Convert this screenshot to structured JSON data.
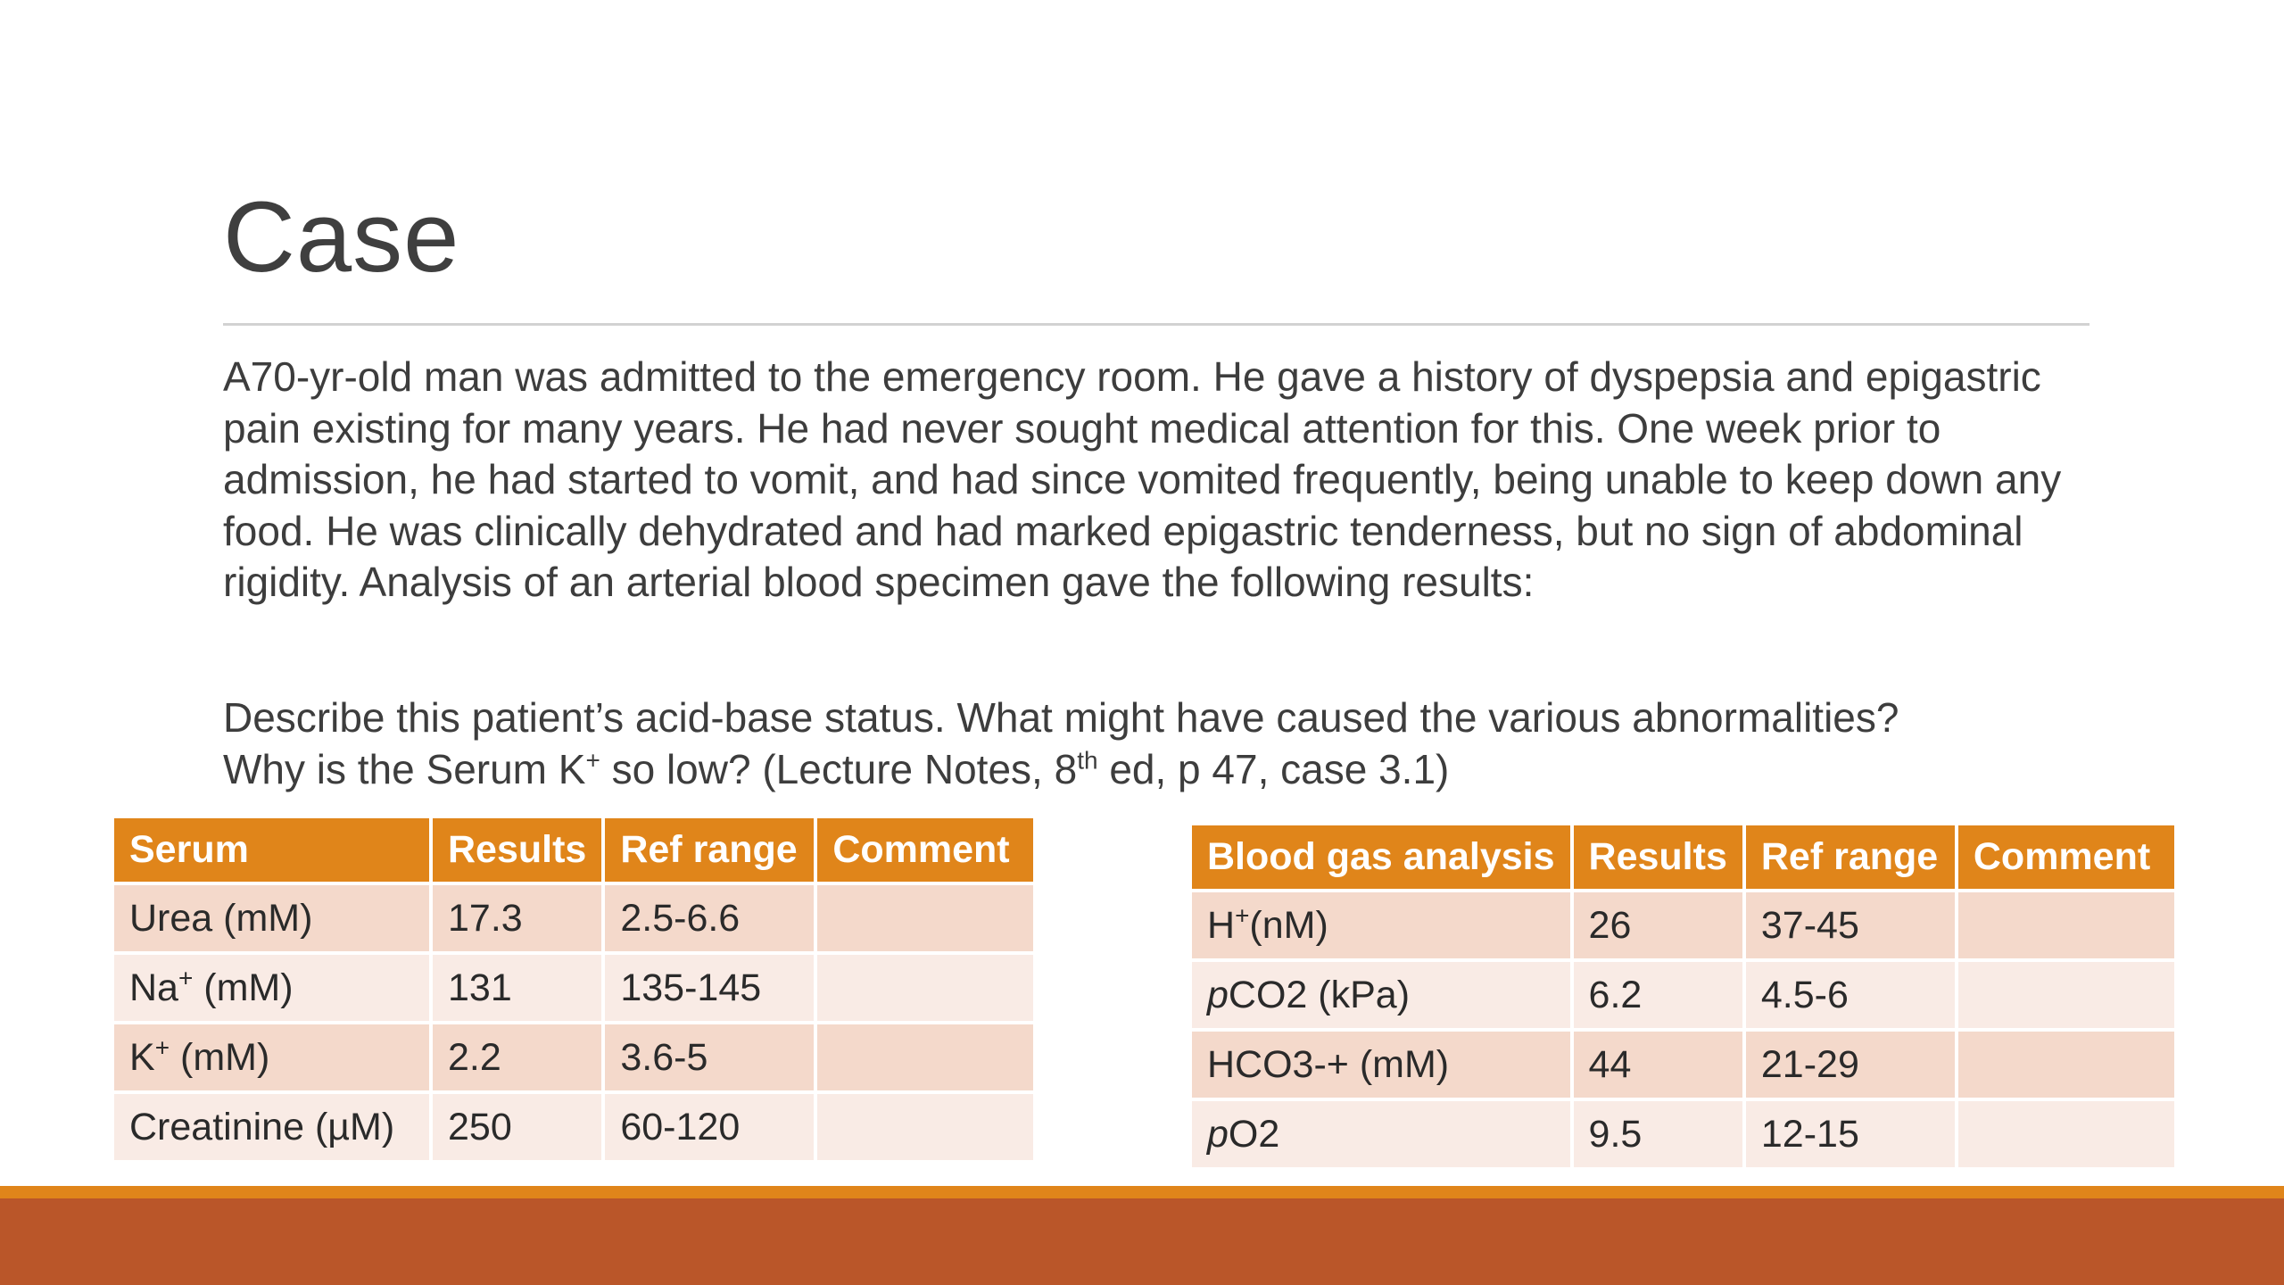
{
  "slide": {
    "title": "Case",
    "paragraph1": "A70-yr-old man was admitted to the emergency room. He gave a history of dyspepsia and epigastric pain existing for many years. He had never sought medical attention for this. One week prior to admission, he had started to vomit, and had since vomited frequently, being unable to keep down any food. He was clinically dehydrated and had marked epigastric tenderness, but no sign of abdominal rigidity. Analysis of an arterial blood specimen gave the following results:",
    "paragraph2": {
      "line1": "Describe this patient’s acid-base status. What might have caused the various abnormalities?",
      "line2_before_sup": "Why is the Serum K",
      "line2_sup1": "+",
      "line2_mid": " so low? (Lecture Notes, 8",
      "line2_sup2": "th",
      "line2_after": " ed, p 47, case 3.1)"
    }
  },
  "serum_table": {
    "headers": [
      "Serum",
      "Results",
      "Ref range",
      "Comment"
    ],
    "rows": [
      {
        "test": "Urea (mM)",
        "test_sup": "",
        "test_suffix": "",
        "result": "17.3",
        "ref": "2.5-6.6",
        "comment": ""
      },
      {
        "test": "Na",
        "test_sup": "+",
        "test_suffix": " (mM)",
        "result": "131",
        "ref": "135-145",
        "comment": ""
      },
      {
        "test": "K",
        "test_sup": "+",
        "test_suffix": " (mM)",
        "result": "2.2",
        "ref": "3.6-5",
        "comment": ""
      },
      {
        "test": "Creatinine (µM)",
        "test_sup": "",
        "test_suffix": "",
        "result": "250",
        "ref": "60-120",
        "comment": ""
      }
    ]
  },
  "blood_gas_table": {
    "headers": [
      "Blood gas analysis",
      "Results",
      "Ref range",
      "Comment"
    ],
    "rows": [
      {
        "test_prefix": "H",
        "test_sup": "+",
        "test": "(nM)",
        "result": "26",
        "ref": "37-45",
        "comment": ""
      },
      {
        "test_prefix": "p",
        "test_sup": "",
        "test": "CO2 (kPa)",
        "result": "6.2",
        "ref": "4.5-6",
        "comment": ""
      },
      {
        "test_prefix": "",
        "test_sup": "",
        "test": "HCO3-+ (mM)",
        "result": "44",
        "ref": "21-29",
        "comment": ""
      },
      {
        "test_prefix": "p",
        "test_sup": "",
        "test": "O2",
        "result": "9.5",
        "ref": "12-15",
        "comment": ""
      }
    ]
  },
  "theme": {
    "header_color": "#e0851a",
    "row_dark": "#f4d9cb",
    "row_light": "#f9ebe5",
    "footer_band": "#ba5629",
    "footer_line": "#e0851a"
  }
}
